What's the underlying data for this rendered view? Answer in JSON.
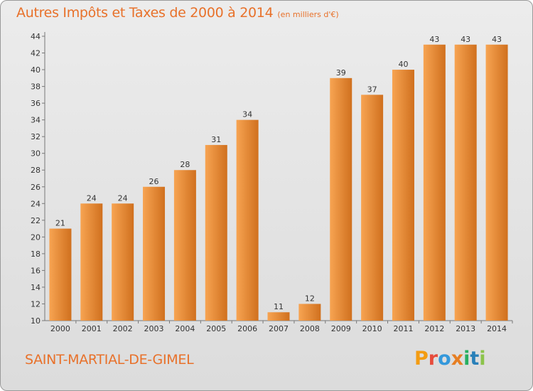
{
  "title": "Autres Impôts et Taxes de 2000 à 2014",
  "title_unit": "(en milliers d'€)",
  "commune": "SAINT-MARTIAL-DE-GIMEL",
  "logo": {
    "letters": [
      "P",
      "r",
      "o",
      "x",
      "i",
      "t",
      "i"
    ],
    "colors": [
      "#f39c12",
      "#e74c3c",
      "#3498db",
      "#e67e22",
      "#27ae60",
      "#2980b9",
      "#8bc34a"
    ]
  },
  "colors": {
    "accent": "#e8712a",
    "bar_light": "#f7a452",
    "bar_dark": "#d0701e"
  },
  "chart_data": {
    "type": "bar",
    "categories": [
      "2000",
      "2001",
      "2002",
      "2003",
      "2004",
      "2005",
      "2006",
      "2007",
      "2008",
      "2009",
      "2010",
      "2011",
      "2012",
      "2013",
      "2014"
    ],
    "values": [
      21,
      24,
      24,
      26,
      28,
      31,
      34,
      11,
      12,
      39,
      37,
      40,
      43,
      43,
      43
    ],
    "ylim": [
      10,
      44
    ],
    "yticks": [
      10,
      12,
      14,
      16,
      18,
      20,
      22,
      24,
      26,
      28,
      30,
      32,
      34,
      36,
      38,
      40,
      42,
      44
    ],
    "grid": false
  }
}
